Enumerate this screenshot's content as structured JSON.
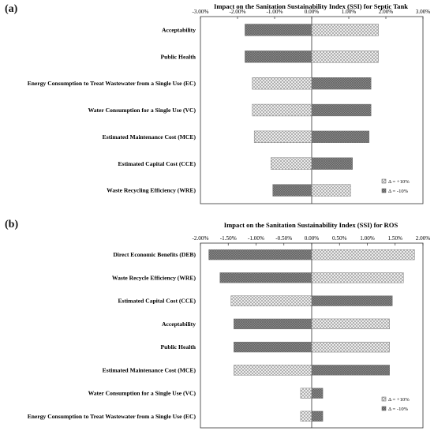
{
  "chart_data": [
    {
      "panel_label": "(a)",
      "type": "bar",
      "orientation": "horizontal",
      "title": "Impact on the Sanitation Sustainability Index (SSI) for Septic Tank",
      "xlim": [
        -3.0,
        3.0
      ],
      "x_ticks": [
        "-3.00%",
        "-2.00%",
        "-1.00%",
        "0.00%",
        "1.00%",
        "2.00%",
        "3.00%"
      ],
      "x_tick_values": [
        -3.0,
        -2.0,
        -1.0,
        0.0,
        1.0,
        2.0,
        3.0
      ],
      "categories": [
        "Acceptability",
        "Public Health",
        "Energy Consumption to Treat Wastewater from a Single Use (EC)",
        "Water Consumption for a Single Use (VC)",
        "Estimated Maintenance Cost (MCE)",
        "Estimated Capital Cost (CCE)",
        "Waste Recycling Efficiency (WRE)"
      ],
      "series": [
        {
          "name": "Δ = +10%",
          "pattern": "crosshatch-light",
          "values": [
            1.8,
            1.8,
            -1.6,
            -1.6,
            -1.55,
            -1.1,
            1.05
          ]
        },
        {
          "name": "Δ = -10%",
          "pattern": "crosshatch-dark",
          "values": [
            -1.8,
            -1.8,
            1.6,
            1.6,
            1.55,
            1.1,
            -1.05
          ]
        }
      ],
      "legend_position": "bottom-right",
      "grid": false
    },
    {
      "panel_label": "(b)",
      "type": "bar",
      "orientation": "horizontal",
      "title": "Impact on the Sanitation Sustainability Index (SSI) for ROS",
      "xlim": [
        -2.0,
        2.0
      ],
      "x_ticks": [
        "-2.00%",
        "-1.50%",
        "-1.00%",
        "-0.50%",
        "0.00%",
        "0.50%",
        "1.00%",
        "1.50%",
        "2.00%"
      ],
      "x_tick_values": [
        -2.0,
        -1.5,
        -1.0,
        -0.5,
        0.0,
        0.5,
        1.0,
        1.5,
        2.0
      ],
      "categories": [
        "Direct Economic Benefits (DEB)",
        "Waste Recycle Efficiency (WRE)",
        "Estimated Capital Cost (CCE)",
        "Acceptability",
        "Public Health",
        "Estimated Maintenance Cost (MCE)",
        "Water Consumption for a Single Use (VC)",
        "Energy Consumption to Treat Wastewater from a Single Use (EC)"
      ],
      "series": [
        {
          "name": "Δ = +10%",
          "pattern": "crosshatch-light",
          "values": [
            1.85,
            1.65,
            -1.45,
            1.4,
            1.4,
            -1.4,
            -0.2,
            -0.2
          ]
        },
        {
          "name": "Δ = -10%",
          "pattern": "crosshatch-dark",
          "values": [
            -1.85,
            -1.65,
            1.45,
            -1.4,
            -1.4,
            1.4,
            0.2,
            0.2
          ]
        }
      ],
      "legend_position": "bottom-right",
      "grid": false
    }
  ]
}
